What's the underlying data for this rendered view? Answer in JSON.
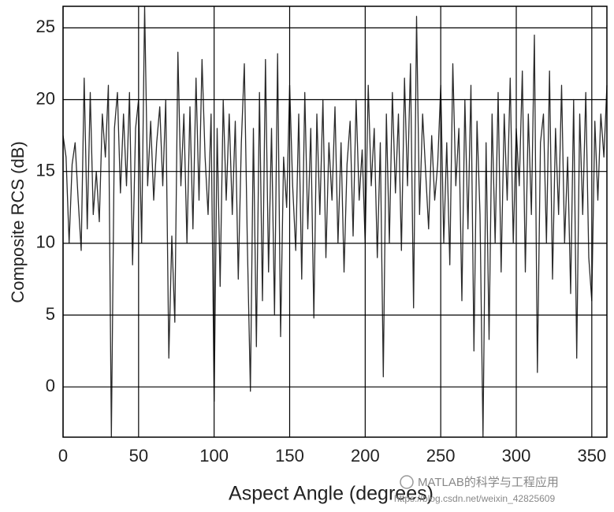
{
  "chart_data": {
    "type": "line",
    "xlabel": "Aspect Angle (degrees)",
    "ylabel": "Composite RCS (dB)",
    "x": [
      0,
      2,
      4,
      6,
      8,
      10,
      12,
      14,
      16,
      18,
      20,
      22,
      24,
      26,
      28,
      30,
      32,
      34,
      36,
      38,
      40,
      42,
      44,
      46,
      48,
      50,
      52,
      54,
      56,
      58,
      60,
      62,
      64,
      66,
      68,
      70,
      72,
      74,
      76,
      78,
      80,
      82,
      84,
      86,
      88,
      90,
      92,
      94,
      96,
      98,
      100,
      102,
      104,
      106,
      108,
      110,
      112,
      114,
      116,
      118,
      120,
      122,
      124,
      126,
      128,
      130,
      132,
      134,
      136,
      138,
      140,
      142,
      144,
      146,
      148,
      150,
      152,
      154,
      156,
      158,
      160,
      162,
      164,
      166,
      168,
      170,
      172,
      174,
      176,
      178,
      180,
      182,
      184,
      186,
      188,
      190,
      192,
      194,
      196,
      198,
      200,
      202,
      204,
      206,
      208,
      210,
      212,
      214,
      216,
      218,
      220,
      222,
      224,
      226,
      228,
      230,
      232,
      234,
      236,
      238,
      240,
      242,
      244,
      246,
      248,
      250,
      252,
      254,
      256,
      258,
      260,
      262,
      264,
      266,
      268,
      270,
      272,
      274,
      276,
      278,
      280,
      282,
      284,
      286,
      288,
      290,
      292,
      294,
      296,
      298,
      300,
      302,
      304,
      306,
      308,
      310,
      312,
      314,
      316,
      318,
      320,
      322,
      324,
      326,
      328,
      330,
      332,
      334,
      336,
      338,
      340,
      342,
      344,
      346,
      348,
      350,
      352,
      354,
      356,
      358,
      360
    ],
    "series": [
      {
        "color": "#2a2a2a",
        "values": [
          17.5,
          16,
          10,
          15.5,
          17,
          13,
          9.5,
          21.5,
          11,
          20.5,
          12,
          15,
          11.5,
          19,
          16,
          21,
          -3.5,
          18,
          20.5,
          13.5,
          19,
          14,
          20.5,
          8.5,
          18,
          20,
          10,
          26.5,
          14,
          18.5,
          13,
          17,
          19.5,
          14,
          20,
          2,
          10.5,
          4.5,
          23.3,
          14,
          19,
          10,
          19.5,
          11,
          21.5,
          13,
          22.8,
          16,
          12,
          19,
          -1,
          18,
          7,
          20,
          13,
          19,
          12,
          18.5,
          7.5,
          17,
          22.5,
          10,
          -0.3,
          18,
          2.8,
          20.5,
          6,
          22.8,
          8,
          18,
          5,
          23.2,
          3.5,
          16,
          12.5,
          21,
          14,
          9.5,
          19,
          7.5,
          20.5,
          11,
          18,
          4.8,
          19,
          12,
          20,
          9,
          17,
          13,
          19.5,
          10,
          17,
          8,
          15.5,
          18.5,
          10.5,
          20,
          13,
          16.5,
          10,
          21,
          14,
          18,
          9,
          17,
          0.7,
          19,
          10,
          20.5,
          13.5,
          19,
          9.5,
          21.5,
          14,
          22.5,
          5.5,
          25.8,
          12,
          19,
          15,
          11,
          17.5,
          13,
          15.5,
          21,
          10,
          17,
          8.5,
          22.5,
          14,
          18,
          6,
          20,
          11,
          21,
          2.5,
          18.5,
          12,
          -3.5,
          17,
          3.3,
          19,
          10,
          20.5,
          8,
          19,
          13,
          21.5,
          10,
          18,
          14,
          22,
          8,
          19,
          12,
          24.5,
          1,
          17,
          19,
          10,
          22,
          7.5,
          18,
          12,
          21,
          10,
          16,
          6.5,
          20,
          2,
          19,
          12,
          20.5,
          9,
          6,
          18.5,
          13,
          19,
          16,
          21
        ]
      }
    ],
    "xlim": [
      0,
      360
    ],
    "ylim": [
      -3.5,
      26.5
    ],
    "xticks": [
      0,
      50,
      100,
      150,
      200,
      250,
      300,
      350
    ],
    "yticks": [
      0,
      5,
      10,
      15,
      20,
      25
    ],
    "grid": true,
    "watermark": [
      "MATLAB的科学与工程应用",
      "https://blog.csdn.net/weixin_42825609"
    ]
  }
}
